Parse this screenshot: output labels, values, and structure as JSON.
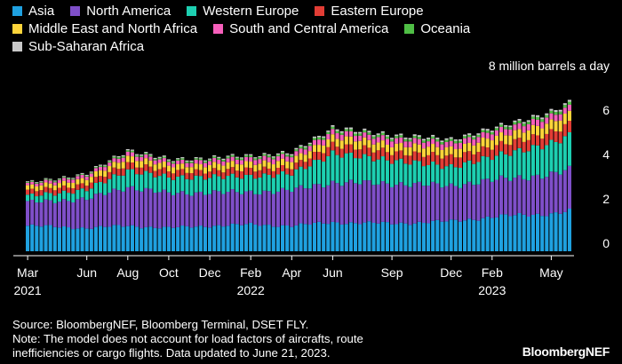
{
  "chart_data": {
    "type": "bar",
    "stacked": true,
    "unit_label": "8 million barrels a day",
    "yticks": [
      0,
      2,
      4,
      6
    ],
    "ylim": [
      0,
      8
    ],
    "x_tick_labels": [
      {
        "label": "Mar",
        "year": "2021"
      },
      {
        "label": "Jun",
        "year": ""
      },
      {
        "label": "Aug",
        "year": ""
      },
      {
        "label": "Oct",
        "year": ""
      },
      {
        "label": "Dec",
        "year": ""
      },
      {
        "label": "Feb",
        "year": "2022"
      },
      {
        "label": "Apr",
        "year": ""
      },
      {
        "label": "Jun",
        "year": ""
      },
      {
        "label": "Sep",
        "year": ""
      },
      {
        "label": "Dec",
        "year": ""
      },
      {
        "label": "Feb",
        "year": "2023"
      },
      {
        "label": "May",
        "year": ""
      }
    ],
    "x_tick_week_index": [
      0,
      13,
      22,
      31,
      40,
      49,
      58,
      67,
      80,
      93,
      102,
      115
    ],
    "weeks": 120,
    "series": [
      {
        "name": "Asia",
        "color": "#1fa1e0"
      },
      {
        "name": "North America",
        "color": "#7f4fc9"
      },
      {
        "name": "Western Europe",
        "color": "#1dcfb1"
      },
      {
        "name": "Eastern Europe",
        "color": "#e23d35"
      },
      {
        "name": "Middle East and North Africa",
        "color": "#fdd43a"
      },
      {
        "name": "South and Central America",
        "color": "#f65fbb"
      },
      {
        "name": "Oceania",
        "color": "#4fbe45"
      },
      {
        "name": "Sub-Saharan Africa",
        "color": "#c9c9c9"
      }
    ],
    "series_keyframes": {
      "Asia": [
        [
          0,
          1.15
        ],
        [
          13,
          1.05
        ],
        [
          22,
          1.15
        ],
        [
          31,
          1.05
        ],
        [
          40,
          1.15
        ],
        [
          49,
          1.2
        ],
        [
          58,
          1.15
        ],
        [
          67,
          1.3
        ],
        [
          80,
          1.25
        ],
        [
          93,
          1.35
        ],
        [
          102,
          1.55
        ],
        [
          115,
          1.7
        ],
        [
          119,
          1.8
        ]
      ],
      "North America": [
        [
          0,
          1.05
        ],
        [
          13,
          1.3
        ],
        [
          22,
          1.75
        ],
        [
          31,
          1.55
        ],
        [
          40,
          1.5
        ],
        [
          49,
          1.45
        ],
        [
          58,
          1.6
        ],
        [
          67,
          1.8
        ],
        [
          80,
          1.8
        ],
        [
          93,
          1.6
        ],
        [
          102,
          1.65
        ],
        [
          115,
          1.75
        ],
        [
          119,
          1.85
        ]
      ],
      "Western Europe": [
        [
          0,
          0.28
        ],
        [
          13,
          0.42
        ],
        [
          22,
          0.75
        ],
        [
          31,
          0.72
        ],
        [
          40,
          0.7
        ],
        [
          49,
          0.72
        ],
        [
          58,
          0.75
        ],
        [
          67,
          1.3
        ],
        [
          80,
          1.05
        ],
        [
          93,
          0.85
        ],
        [
          102,
          1.05
        ],
        [
          115,
          1.4
        ],
        [
          119,
          1.55
        ]
      ],
      "Eastern Europe": [
        [
          0,
          0.22
        ],
        [
          13,
          0.25
        ],
        [
          22,
          0.32
        ],
        [
          31,
          0.28
        ],
        [
          40,
          0.28
        ],
        [
          49,
          0.32
        ],
        [
          58,
          0.28
        ],
        [
          67,
          0.4
        ],
        [
          80,
          0.38
        ],
        [
          93,
          0.45
        ],
        [
          102,
          0.45
        ],
        [
          115,
          0.5
        ],
        [
          119,
          0.52
        ]
      ],
      "Middle East and North Africa": [
        [
          0,
          0.2
        ],
        [
          13,
          0.24
        ],
        [
          22,
          0.3
        ],
        [
          31,
          0.26
        ],
        [
          40,
          0.28
        ],
        [
          49,
          0.3
        ],
        [
          58,
          0.3
        ],
        [
          67,
          0.36
        ],
        [
          80,
          0.35
        ],
        [
          93,
          0.38
        ],
        [
          102,
          0.4
        ],
        [
          115,
          0.45
        ],
        [
          119,
          0.47
        ]
      ],
      "South and Central America": [
        [
          0,
          0.12
        ],
        [
          13,
          0.15
        ],
        [
          22,
          0.18
        ],
        [
          31,
          0.17
        ],
        [
          40,
          0.18
        ],
        [
          49,
          0.2
        ],
        [
          58,
          0.22
        ],
        [
          67,
          0.24
        ],
        [
          80,
          0.25
        ],
        [
          93,
          0.25
        ],
        [
          102,
          0.26
        ],
        [
          115,
          0.28
        ],
        [
          119,
          0.29
        ]
      ],
      "Oceania": [
        [
          0,
          0.04
        ],
        [
          13,
          0.04
        ],
        [
          22,
          0.07
        ],
        [
          31,
          0.06
        ],
        [
          40,
          0.07
        ],
        [
          49,
          0.08
        ],
        [
          58,
          0.08
        ],
        [
          67,
          0.1
        ],
        [
          80,
          0.1
        ],
        [
          93,
          0.1
        ],
        [
          102,
          0.1
        ],
        [
          115,
          0.12
        ],
        [
          119,
          0.13
        ]
      ],
      "Sub-Saharan Africa": [
        [
          0,
          0.03
        ],
        [
          13,
          0.04
        ],
        [
          22,
          0.05
        ],
        [
          31,
          0.05
        ],
        [
          40,
          0.05
        ],
        [
          49,
          0.05
        ],
        [
          58,
          0.06
        ],
        [
          67,
          0.07
        ],
        [
          80,
          0.07
        ],
        [
          93,
          0.07
        ],
        [
          102,
          0.07
        ],
        [
          115,
          0.08
        ],
        [
          119,
          0.08
        ]
      ]
    },
    "grid": false,
    "legend_position": "top-left"
  },
  "notes": {
    "source": "Source: BloombergNEF, Bloomberg Terminal, DSET FLY.",
    "note_line1": "Note: The model does not account for load factors of aircrafts, route",
    "note_line2": "inefficiencies or cargo flights. Data updated to June 21, 2023."
  },
  "brand": "BloombergNEF"
}
